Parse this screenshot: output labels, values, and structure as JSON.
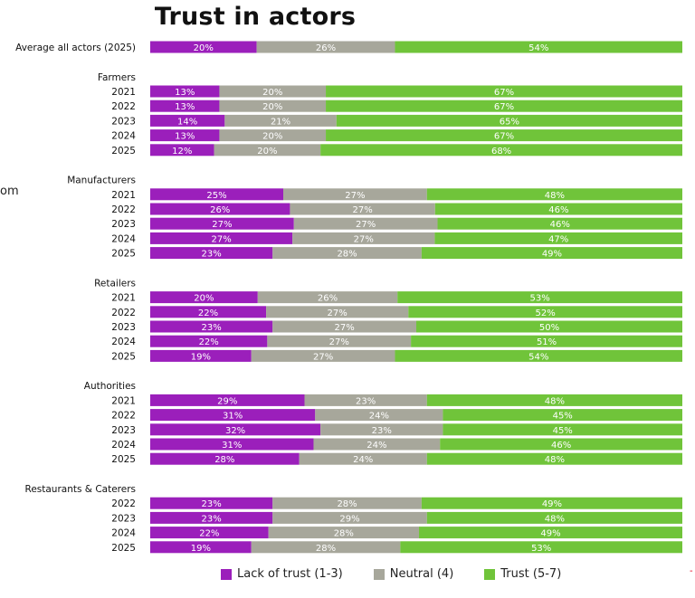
{
  "edge_text": "om",
  "red_mark": "-",
  "colors": {
    "lack": "#9b1fbb",
    "neutral": "#a7a79b",
    "trust": "#70c43a"
  },
  "chart_data": {
    "type": "bar",
    "orientation": "horizontal",
    "stacked": "100%",
    "title": "Trust in actors",
    "legend_position": "bottom",
    "series_names": [
      "Lack of trust (1-3)",
      "Neutral (4)",
      "Trust (5-7)"
    ],
    "groups": [
      {
        "name": "",
        "rows": [
          {
            "label": "Average all actors (2025)",
            "values": [
              20,
              26,
              54
            ]
          }
        ]
      },
      {
        "name": "Farmers",
        "rows": [
          {
            "label": "2021",
            "values": [
              13,
              20,
              67
            ]
          },
          {
            "label": "2022",
            "values": [
              13,
              20,
              67
            ]
          },
          {
            "label": "2023",
            "values": [
              14,
              21,
              65
            ]
          },
          {
            "label": "2024",
            "values": [
              13,
              20,
              67
            ]
          },
          {
            "label": "2025",
            "values": [
              12,
              20,
              68
            ]
          }
        ]
      },
      {
        "name": "Manufacturers",
        "rows": [
          {
            "label": "2021",
            "values": [
              25,
              27,
              48
            ]
          },
          {
            "label": "2022",
            "values": [
              26,
              27,
              46
            ]
          },
          {
            "label": "2023",
            "values": [
              27,
              27,
              46
            ]
          },
          {
            "label": "2024",
            "values": [
              27,
              27,
              47
            ]
          },
          {
            "label": "2025",
            "values": [
              23,
              28,
              49
            ]
          }
        ]
      },
      {
        "name": "Retailers",
        "rows": [
          {
            "label": "2021",
            "values": [
              20,
              26,
              53
            ]
          },
          {
            "label": "2022",
            "values": [
              22,
              27,
              52
            ]
          },
          {
            "label": "2023",
            "values": [
              23,
              27,
              50
            ]
          },
          {
            "label": "2024",
            "values": [
              22,
              27,
              51
            ]
          },
          {
            "label": "2025",
            "values": [
              19,
              27,
              54
            ]
          }
        ]
      },
      {
        "name": "Authorities",
        "rows": [
          {
            "label": "2021",
            "values": [
              29,
              23,
              48
            ]
          },
          {
            "label": "2022",
            "values": [
              31,
              24,
              45
            ]
          },
          {
            "label": "2023",
            "values": [
              32,
              23,
              45
            ]
          },
          {
            "label": "2024",
            "values": [
              31,
              24,
              46
            ]
          },
          {
            "label": "2025",
            "values": [
              28,
              24,
              48
            ]
          }
        ]
      },
      {
        "name": "Restaurants & Caterers",
        "rows": [
          {
            "label": "2022",
            "values": [
              23,
              28,
              49
            ]
          },
          {
            "label": "2023",
            "values": [
              23,
              29,
              48
            ]
          },
          {
            "label": "2024",
            "values": [
              22,
              28,
              49
            ]
          },
          {
            "label": "2025",
            "values": [
              19,
              28,
              53
            ]
          }
        ]
      }
    ]
  }
}
